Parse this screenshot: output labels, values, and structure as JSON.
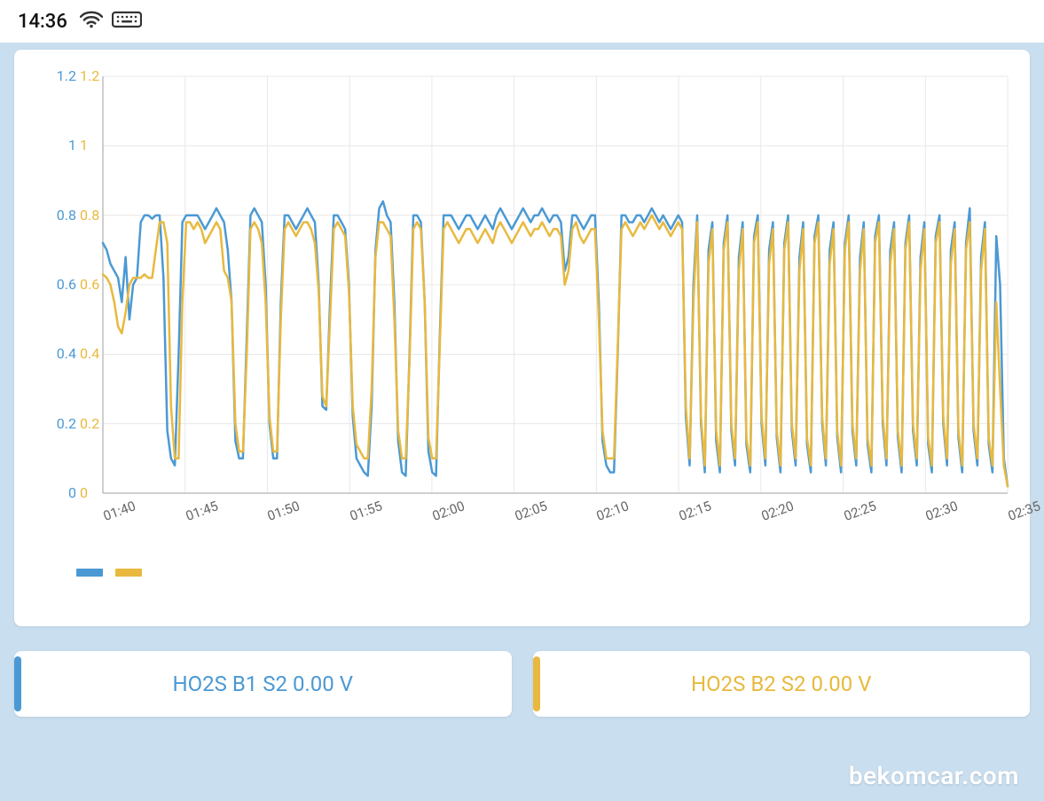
{
  "status": {
    "time": "14:36"
  },
  "watermark": "bekomcar.com",
  "palette": {
    "blue": "#4b99d4",
    "yellow": "#e8b93e",
    "grid": "#e8e8e8",
    "axis": "#bfbfbf",
    "bg": "#ffffff",
    "page_bg": "#c9deef"
  },
  "chart": {
    "type": "line",
    "background_color": "#ffffff",
    "grid_color": "#e8e8e8",
    "axis_color": "#bfbfbf",
    "line_width": 2.5,
    "ylim": [
      0,
      1.2
    ],
    "ytick_values": [
      0,
      0.2,
      0.4,
      0.6,
      0.8,
      1.0,
      1.2
    ],
    "ytick_labels": [
      "0",
      "0.2",
      "0.4",
      "0.6",
      "0.8",
      "1",
      "1.2"
    ],
    "yaxis_left_color": "#4b99d4",
    "yaxis_right_color": "#e8b93e",
    "yaxis_fontsize": 16,
    "xtick_labels": [
      "01:40",
      "01:45",
      "01:50",
      "01:55",
      "02:00",
      "02:05",
      "02:10",
      "02:15",
      "02:20",
      "02:25",
      "02:30",
      "02:35"
    ],
    "xaxis_fontsize": 15,
    "xaxis_color": "#666666",
    "x_samples": 240,
    "series": [
      {
        "name": "HO2S_B1_S2",
        "color": "#4b99d4",
        "values": [
          0.72,
          0.7,
          0.66,
          0.64,
          0.62,
          0.55,
          0.68,
          0.5,
          0.6,
          0.62,
          0.78,
          0.8,
          0.8,
          0.79,
          0.8,
          0.8,
          0.62,
          0.18,
          0.1,
          0.08,
          0.4,
          0.78,
          0.8,
          0.8,
          0.8,
          0.8,
          0.78,
          0.76,
          0.78,
          0.8,
          0.82,
          0.8,
          0.78,
          0.7,
          0.55,
          0.15,
          0.1,
          0.1,
          0.45,
          0.8,
          0.82,
          0.8,
          0.78,
          0.6,
          0.2,
          0.1,
          0.1,
          0.55,
          0.8,
          0.8,
          0.78,
          0.76,
          0.78,
          0.8,
          0.82,
          0.8,
          0.78,
          0.6,
          0.25,
          0.24,
          0.55,
          0.8,
          0.8,
          0.78,
          0.76,
          0.6,
          0.22,
          0.1,
          0.08,
          0.06,
          0.05,
          0.25,
          0.7,
          0.82,
          0.84,
          0.8,
          0.78,
          0.55,
          0.15,
          0.06,
          0.05,
          0.4,
          0.8,
          0.8,
          0.78,
          0.55,
          0.12,
          0.06,
          0.05,
          0.45,
          0.8,
          0.8,
          0.8,
          0.78,
          0.76,
          0.78,
          0.8,
          0.8,
          0.78,
          0.76,
          0.78,
          0.8,
          0.78,
          0.76,
          0.8,
          0.82,
          0.8,
          0.78,
          0.76,
          0.78,
          0.8,
          0.82,
          0.8,
          0.78,
          0.8,
          0.8,
          0.82,
          0.8,
          0.78,
          0.8,
          0.8,
          0.78,
          0.64,
          0.68,
          0.8,
          0.8,
          0.78,
          0.76,
          0.78,
          0.8,
          0.8,
          0.55,
          0.15,
          0.08,
          0.06,
          0.06,
          0.4,
          0.8,
          0.8,
          0.78,
          0.78,
          0.8,
          0.8,
          0.78,
          0.8,
          0.82,
          0.8,
          0.78,
          0.8,
          0.78,
          0.76,
          0.78,
          0.8,
          0.78,
          0.22,
          0.08,
          0.6,
          0.8,
          0.2,
          0.06,
          0.7,
          0.78,
          0.15,
          0.06,
          0.72,
          0.8,
          0.18,
          0.08,
          0.68,
          0.78,
          0.14,
          0.06,
          0.74,
          0.8,
          0.2,
          0.08,
          0.7,
          0.78,
          0.16,
          0.06,
          0.72,
          0.8,
          0.18,
          0.08,
          0.68,
          0.78,
          0.14,
          0.06,
          0.74,
          0.8,
          0.2,
          0.08,
          0.7,
          0.78,
          0.16,
          0.06,
          0.72,
          0.8,
          0.18,
          0.08,
          0.68,
          0.78,
          0.14,
          0.06,
          0.74,
          0.8,
          0.2,
          0.08,
          0.7,
          0.78,
          0.16,
          0.06,
          0.72,
          0.8,
          0.18,
          0.08,
          0.68,
          0.78,
          0.14,
          0.06,
          0.74,
          0.8,
          0.2,
          0.08,
          0.7,
          0.78,
          0.16,
          0.06,
          0.72,
          0.82,
          0.18,
          0.08,
          0.68,
          0.78,
          0.14,
          0.06,
          0.74,
          0.6,
          0.1,
          0.02
        ]
      },
      {
        "name": "HO2S_B2_S2",
        "color": "#e8b93e",
        "values": [
          0.63,
          0.62,
          0.6,
          0.55,
          0.48,
          0.46,
          0.52,
          0.6,
          0.62,
          0.62,
          0.62,
          0.63,
          0.62,
          0.62,
          0.7,
          0.78,
          0.78,
          0.72,
          0.25,
          0.1,
          0.1,
          0.55,
          0.78,
          0.78,
          0.76,
          0.78,
          0.76,
          0.72,
          0.74,
          0.76,
          0.78,
          0.76,
          0.64,
          0.62,
          0.55,
          0.2,
          0.12,
          0.12,
          0.4,
          0.76,
          0.78,
          0.76,
          0.72,
          0.55,
          0.22,
          0.12,
          0.12,
          0.5,
          0.76,
          0.78,
          0.76,
          0.74,
          0.76,
          0.78,
          0.78,
          0.76,
          0.72,
          0.58,
          0.28,
          0.25,
          0.5,
          0.76,
          0.78,
          0.76,
          0.74,
          0.58,
          0.25,
          0.14,
          0.12,
          0.1,
          0.1,
          0.3,
          0.68,
          0.78,
          0.78,
          0.76,
          0.74,
          0.5,
          0.18,
          0.1,
          0.1,
          0.38,
          0.76,
          0.78,
          0.76,
          0.55,
          0.16,
          0.1,
          0.1,
          0.42,
          0.76,
          0.78,
          0.76,
          0.74,
          0.72,
          0.74,
          0.76,
          0.76,
          0.74,
          0.72,
          0.74,
          0.76,
          0.74,
          0.72,
          0.76,
          0.78,
          0.76,
          0.74,
          0.72,
          0.74,
          0.76,
          0.78,
          0.76,
          0.74,
          0.76,
          0.76,
          0.78,
          0.76,
          0.74,
          0.76,
          0.76,
          0.74,
          0.6,
          0.64,
          0.76,
          0.78,
          0.74,
          0.72,
          0.74,
          0.76,
          0.76,
          0.5,
          0.18,
          0.1,
          0.1,
          0.1,
          0.42,
          0.76,
          0.78,
          0.76,
          0.74,
          0.76,
          0.78,
          0.76,
          0.78,
          0.8,
          0.78,
          0.76,
          0.78,
          0.76,
          0.74,
          0.76,
          0.78,
          0.76,
          0.25,
          0.1,
          0.55,
          0.78,
          0.22,
          0.08,
          0.66,
          0.76,
          0.18,
          0.08,
          0.7,
          0.78,
          0.2,
          0.1,
          0.64,
          0.76,
          0.16,
          0.08,
          0.72,
          0.78,
          0.22,
          0.1,
          0.66,
          0.76,
          0.18,
          0.08,
          0.7,
          0.78,
          0.2,
          0.1,
          0.64,
          0.76,
          0.16,
          0.08,
          0.72,
          0.78,
          0.22,
          0.1,
          0.66,
          0.76,
          0.18,
          0.08,
          0.7,
          0.78,
          0.2,
          0.1,
          0.64,
          0.76,
          0.16,
          0.08,
          0.72,
          0.78,
          0.22,
          0.1,
          0.66,
          0.76,
          0.18,
          0.08,
          0.7,
          0.78,
          0.2,
          0.1,
          0.64,
          0.76,
          0.16,
          0.08,
          0.72,
          0.78,
          0.22,
          0.1,
          0.66,
          0.76,
          0.18,
          0.08,
          0.7,
          0.78,
          0.2,
          0.1,
          0.64,
          0.76,
          0.16,
          0.08,
          0.55,
          0.3,
          0.08,
          0.02
        ]
      }
    ],
    "legend": {
      "swatch_width": 30,
      "swatch_height": 9
    }
  },
  "readouts": [
    {
      "label": "HO2S B1 S2 0.00 V",
      "color": "#4b99d4"
    },
    {
      "label": "HO2S B2 S2 0.00 V",
      "color": "#e8b93e"
    }
  ]
}
